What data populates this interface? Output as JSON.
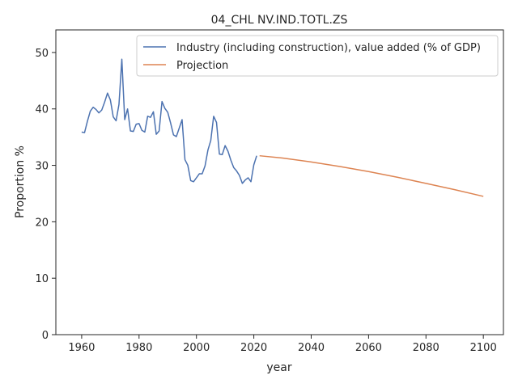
{
  "chart_data": {
    "type": "line",
    "title": "04_CHL NV.IND.TOTL.ZS",
    "xlabel": "year",
    "ylabel": "Proportion %",
    "xlim": [
      1951,
      2107
    ],
    "ylim": [
      0,
      54
    ],
    "xticks": [
      1960,
      1980,
      2000,
      2020,
      2040,
      2060,
      2080,
      2100
    ],
    "yticks": [
      0,
      10,
      20,
      30,
      40,
      50
    ],
    "grid": false,
    "legend_position": "top-right",
    "series": [
      {
        "name": "Industry (including construction), value added (% of GDP)",
        "color": "#4c72b0",
        "x": [
          1960,
          1961,
          1962,
          1963,
          1964,
          1965,
          1966,
          1967,
          1968,
          1969,
          1970,
          1971,
          1972,
          1973,
          1974,
          1975,
          1976,
          1977,
          1978,
          1979,
          1980,
          1981,
          1982,
          1983,
          1984,
          1985,
          1986,
          1987,
          1988,
          1989,
          1990,
          1991,
          1992,
          1993,
          1994,
          1995,
          1996,
          1997,
          1998,
          1999,
          2000,
          2001,
          2002,
          2003,
          2004,
          2005,
          2006,
          2007,
          2008,
          2009,
          2010,
          2011,
          2012,
          2013,
          2014,
          2015,
          2016,
          2017,
          2018,
          2019,
          2020,
          2021
        ],
        "y": [
          35.9,
          35.8,
          37.8,
          39.6,
          40.3,
          39.9,
          39.3,
          39.8,
          41.2,
          42.8,
          41.6,
          38.6,
          37.9,
          40.8,
          48.8,
          38.1,
          40.0,
          36.1,
          36.0,
          37.3,
          37.4,
          36.2,
          35.9,
          38.7,
          38.5,
          39.5,
          35.5,
          36.1,
          41.3,
          40.1,
          39.4,
          37.5,
          35.4,
          35.1,
          36.6,
          38.1,
          31.0,
          30.0,
          27.3,
          27.1,
          27.8,
          28.5,
          28.5,
          29.9,
          32.7,
          34.4,
          38.7,
          37.6,
          32.0,
          31.9,
          33.5,
          32.5,
          30.9,
          29.6,
          29.0,
          28.2,
          26.8,
          27.4,
          27.8,
          27.1,
          30.1,
          31.7
        ]
      },
      {
        "name": "Projection",
        "color": "#dd8452",
        "x": [
          2022,
          2030,
          2040,
          2050,
          2060,
          2070,
          2080,
          2090,
          2100
        ],
        "y": [
          31.7,
          31.3,
          30.6,
          29.8,
          28.9,
          27.9,
          26.8,
          25.7,
          24.5
        ]
      }
    ]
  }
}
